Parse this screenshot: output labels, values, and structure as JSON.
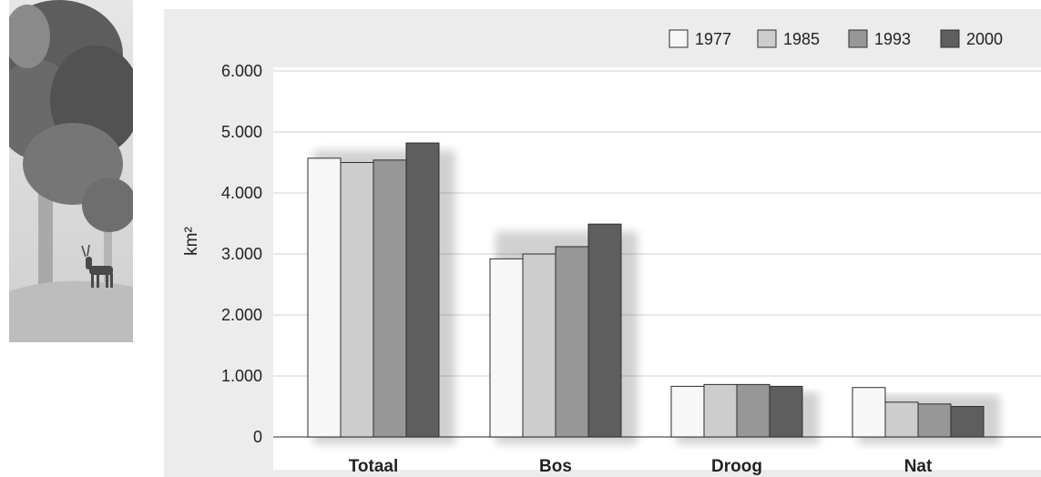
{
  "chart_data": {
    "type": "bar",
    "categories": [
      "Totaal",
      "Bos",
      "Droog",
      "Nat"
    ],
    "series": [
      {
        "name": "1977",
        "color": "#f7f7f7",
        "values": [
          4570,
          2920,
          830,
          810
        ]
      },
      {
        "name": "1985",
        "color": "#cdcdcd",
        "values": [
          4500,
          3000,
          860,
          570
        ]
      },
      {
        "name": "1993",
        "color": "#979797",
        "values": [
          4540,
          3120,
          860,
          540
        ]
      },
      {
        "name": "2000",
        "color": "#5e5e5e",
        "values": [
          4820,
          3490,
          830,
          500
        ]
      }
    ],
    "ylabel": "km²",
    "yticks": [
      "0",
      "1.000",
      "2.000",
      "3.000",
      "4.000",
      "5.000",
      "6.000"
    ],
    "ylim": [
      0,
      6000
    ],
    "grid": true,
    "legend_position": "top-right"
  }
}
